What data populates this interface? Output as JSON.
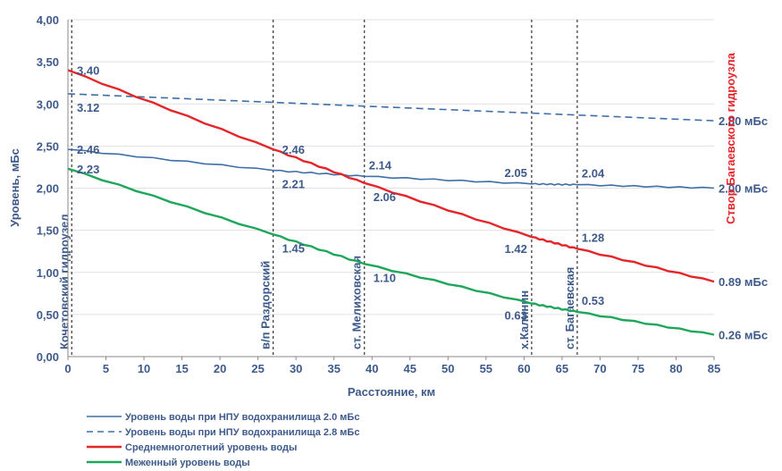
{
  "chart_data": {
    "type": "line",
    "ylabel": "Уровень, мБс",
    "xlabel": "Расстояние, км",
    "xlim": [
      0,
      85
    ],
    "ylim": [
      0,
      4
    ],
    "x_ticks": [
      0,
      5,
      10,
      15,
      20,
      25,
      30,
      35,
      40,
      45,
      50,
      55,
      60,
      65,
      70,
      75,
      80,
      85
    ],
    "y_ticks": [
      "0,00",
      "0,50",
      "1,00",
      "1,50",
      "2,00",
      "2,50",
      "3,00",
      "3,50",
      "4,00"
    ],
    "colors": {
      "npu20": "#3f6fa8",
      "npu28": "#3f6fa8",
      "mean": "#e4262b",
      "low": "#1fa65a",
      "axis_text": "#3d5a8a",
      "dam_label": "#e4262b"
    },
    "series": [
      {
        "id": "npu20",
        "name": "Уровень воды при НПУ водохранилища 2.0 мБс",
        "style": "solid",
        "x": [
          0,
          27,
          39,
          61,
          67,
          85
        ],
        "y": [
          2.46,
          2.21,
          2.14,
          2.05,
          2.04,
          2.0
        ]
      },
      {
        "id": "npu28",
        "name": "Уровень воды при НПУ водохранилища 2.8 мБс",
        "style": "dashed",
        "x": [
          0,
          85
        ],
        "y": [
          3.12,
          2.8
        ]
      },
      {
        "id": "mean",
        "name": "Среднемноголетний уровень воды",
        "style": "solid",
        "x": [
          0,
          27,
          39,
          61,
          67,
          85
        ],
        "y": [
          3.4,
          2.46,
          2.06,
          1.42,
          1.28,
          0.89
        ]
      },
      {
        "id": "low",
        "name": "Меженный уровень воды",
        "style": "solid",
        "x": [
          0,
          27,
          39,
          61,
          67,
          85
        ],
        "y": [
          2.23,
          1.45,
          1.1,
          0.63,
          0.53,
          0.26
        ]
      }
    ],
    "point_labels": [
      {
        "text": "3.40",
        "x": 0,
        "y": 3.4,
        "pos": "right"
      },
      {
        "text": "3.12",
        "x": 0,
        "y": 3.12,
        "pos": "below-right"
      },
      {
        "text": "2.46",
        "x": 0,
        "y": 2.46,
        "pos": "right"
      },
      {
        "text": "2.23",
        "x": 0,
        "y": 2.23,
        "pos": "right"
      },
      {
        "text": "2.46",
        "x": 27,
        "y": 2.46,
        "pos": "right"
      },
      {
        "text": "2.21",
        "x": 27,
        "y": 2.21,
        "pos": "below-right"
      },
      {
        "text": "1.45",
        "x": 27,
        "y": 1.45,
        "pos": "below-right"
      },
      {
        "text": "2.14",
        "x": 39,
        "y": 2.14,
        "pos": "above-right"
      },
      {
        "text": "2.06",
        "x": 39,
        "y": 2.06,
        "pos": "below-right"
      },
      {
        "text": "1.10",
        "x": 39,
        "y": 1.1,
        "pos": "below-right"
      },
      {
        "text": "2.05",
        "x": 61,
        "y": 2.05,
        "pos": "above-left"
      },
      {
        "text": "1.42",
        "x": 61,
        "y": 1.42,
        "pos": "below-left"
      },
      {
        "text": "0.63",
        "x": 61,
        "y": 0.63,
        "pos": "below-left"
      },
      {
        "text": "2.04",
        "x": 67,
        "y": 2.04,
        "pos": "above-right"
      },
      {
        "text": "1.28",
        "x": 67,
        "y": 1.28,
        "pos": "above-right"
      },
      {
        "text": "0.53",
        "x": 67,
        "y": 0.53,
        "pos": "above-right"
      }
    ],
    "end_labels": [
      {
        "text": "2.80 мБс",
        "y": 2.8
      },
      {
        "text": "2.00 мБс",
        "y": 2.0
      },
      {
        "text": "0.89 мБс",
        "y": 0.89
      },
      {
        "text": "0.26 мБс",
        "y": 0.26
      }
    ],
    "verticals": [
      {
        "text": "Кочетовский гидроузел",
        "x": 0.5
      },
      {
        "text": "в/п Раздорский",
        "x": 27
      },
      {
        "text": "ст. Мелиховская",
        "x": 39
      },
      {
        "text": "х.Калинин",
        "x": 61
      },
      {
        "text": "ст. Багаевская",
        "x": 67
      }
    ],
    "dam_label": "Створ Багаевского гидроузла",
    "legend_position": "bottom-left"
  }
}
